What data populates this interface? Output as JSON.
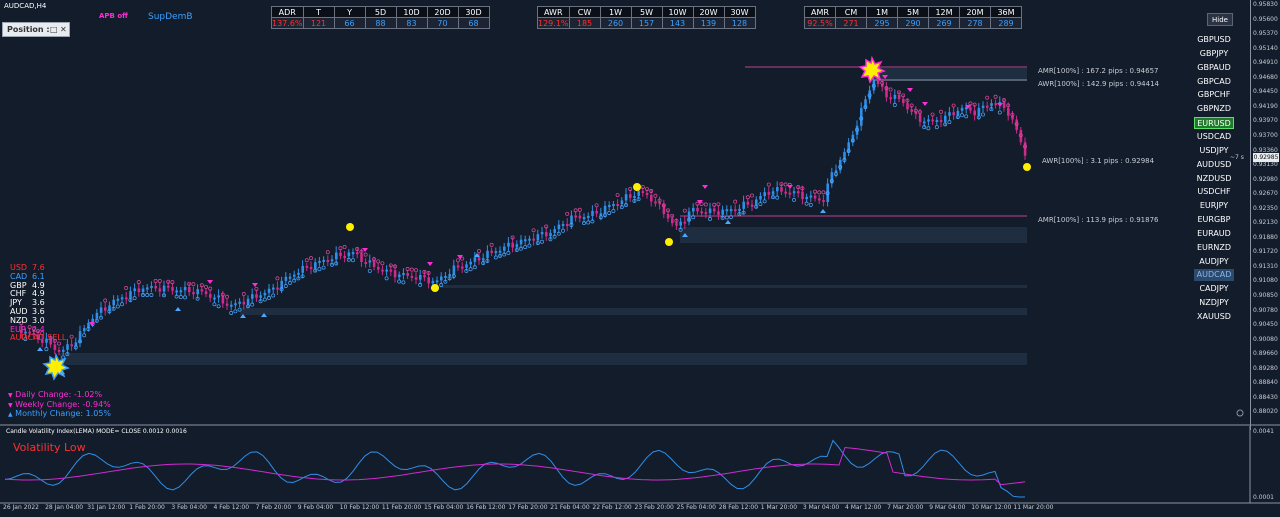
{
  "symbol_title": "AUDCAD,H4",
  "badge_apb": "APB off",
  "badge_supdem": "SupDemB",
  "tables": [
    {
      "headers": [
        "ADR",
        "T",
        "Y",
        "5D",
        "10D",
        "20D",
        "30D"
      ],
      "values": [
        "137.6%",
        "121",
        "66",
        "88",
        "83",
        "70",
        "68"
      ],
      "red": [
        0,
        1
      ]
    },
    {
      "headers": [
        "AWR",
        "CW",
        "1W",
        "5W",
        "10W",
        "20W",
        "30W"
      ],
      "values": [
        "129.1%",
        "185",
        "260",
        "157",
        "143",
        "139",
        "128"
      ],
      "red": [
        0,
        1
      ]
    },
    {
      "headers": [
        "AMR",
        "CM",
        "1M",
        "5M",
        "12M",
        "20M",
        "36M"
      ],
      "values": [
        "92.5%",
        "271",
        "295",
        "290",
        "269",
        "278",
        "289"
      ],
      "red": [
        0,
        1
      ]
    }
  ],
  "position_panel": {
    "label": "Position :",
    "icon1": "□",
    "icon2": "✕"
  },
  "hide_button": "Hide",
  "symbols": [
    "GBPUSD",
    "GBPJPY",
    "GBPAUD",
    "GBPCAD",
    "GBPCHF",
    "GBPNZD",
    "EURUSD",
    "USDCAD",
    "USDJPY",
    "AUDUSD",
    "NZDUSD",
    "USDCHF",
    "EURJPY",
    "EURGBP",
    "EURAUD",
    "EURNZD",
    "AUDJPY",
    "AUDCAD",
    "CADJPY",
    "NZDJPY",
    "XAUUSD"
  ],
  "active_symbol": "EURUSD",
  "current_symbol": "AUDCAD",
  "price_labels": [
    "0.95830",
    "0.95600",
    "0.95370",
    "0.95140",
    "0.94910",
    "0.94680",
    "0.94450",
    "0.94190",
    "0.93970",
    "0.93700",
    "0.93360",
    "0.93130",
    "0.92980",
    "0.92670",
    "0.92350",
    "0.92130",
    "0.91880",
    "0.91720",
    "0.91310",
    "0.91080",
    "0.90850",
    "0.90780",
    "0.90450",
    "0.90080",
    "0.89660",
    "0.89280",
    "0.88840",
    "0.88430",
    "0.88020"
  ],
  "current_price": "0.92985",
  "countdown": "~7 s",
  "levels": [
    {
      "text": "AMR[100%] : 167.2 pips : 0.94657",
      "color": "#c0408f"
    },
    {
      "text": "AWR[100%] : 142.9 pips : 0.94414",
      "color": "#8a93a3"
    },
    {
      "text": "AWR[100%] : 3.1 pips : 0.92984",
      "color": "#6a7282"
    },
    {
      "text": "AMR[100%] : 113.9 pips : 0.91876",
      "color": "#c0408f"
    }
  ],
  "currency_strength": [
    {
      "ccy": "USD",
      "val": "7.6",
      "color": "#ff3030"
    },
    {
      "ccy": "CAD",
      "val": "6.1",
      "color": "#3aa0ff"
    },
    {
      "ccy": "GBP",
      "val": "4.9",
      "color": "#ffffff"
    },
    {
      "ccy": "CHF",
      "val": "4.9",
      "color": "#ffffff"
    },
    {
      "ccy": "JPY",
      "val": "3.6",
      "color": "#ffffff"
    },
    {
      "ccy": "AUD",
      "val": "3.6",
      "color": "#ffffff"
    },
    {
      "ccy": "NZD",
      "val": "3.0",
      "color": "#ffffff"
    },
    {
      "ccy": "EUR",
      "val": "2.4",
      "color": "#ff2dd6"
    }
  ],
  "signal_text": "AUDCAD SELL",
  "changes": [
    {
      "arrow": "▼",
      "text": "Daily Change: -1.02%",
      "color": "#ff2dd6"
    },
    {
      "arrow": "▼",
      "text": "Weekly Change: -0.94%",
      "color": "#ff2dd6"
    },
    {
      "arrow": "▲",
      "text": "Monthly Change: 1.05%",
      "color": "#3aa0ff"
    }
  ],
  "sub_title": "Candle Volatility Index(LEMA) MODE= CLOSE 0.0012 0.0016",
  "vol_label": "Volatility Low",
  "sub_axis": [
    "0.0041",
    "0.0001"
  ],
  "time_labels": [
    "26 Jan 2022",
    "28 Jan 04:00",
    "31 Jan 12:00",
    "1 Feb 20:00",
    "3 Feb 04:00",
    "4 Feb 12:00",
    "7 Feb 20:00",
    "9 Feb 04:00",
    "10 Feb 12:00",
    "11 Feb 20:00",
    "15 Feb 04:00",
    "16 Feb 12:00",
    "17 Feb 20:00",
    "21 Feb 04:00",
    "22 Feb 12:00",
    "23 Feb 20:00",
    "25 Feb 04:00",
    "28 Feb 12:00",
    "1 Mar 20:00",
    "3 Mar 04:00",
    "4 Mar 12:00",
    "7 Mar 20:00",
    "9 Mar 04:00",
    "10 Mar 12:00",
    "11 Mar 20:00"
  ],
  "colors": {
    "bull": "#2f8fe8",
    "bear": "#d02a8c",
    "bg": "#131c2b",
    "zone": "#1e2d40"
  }
}
